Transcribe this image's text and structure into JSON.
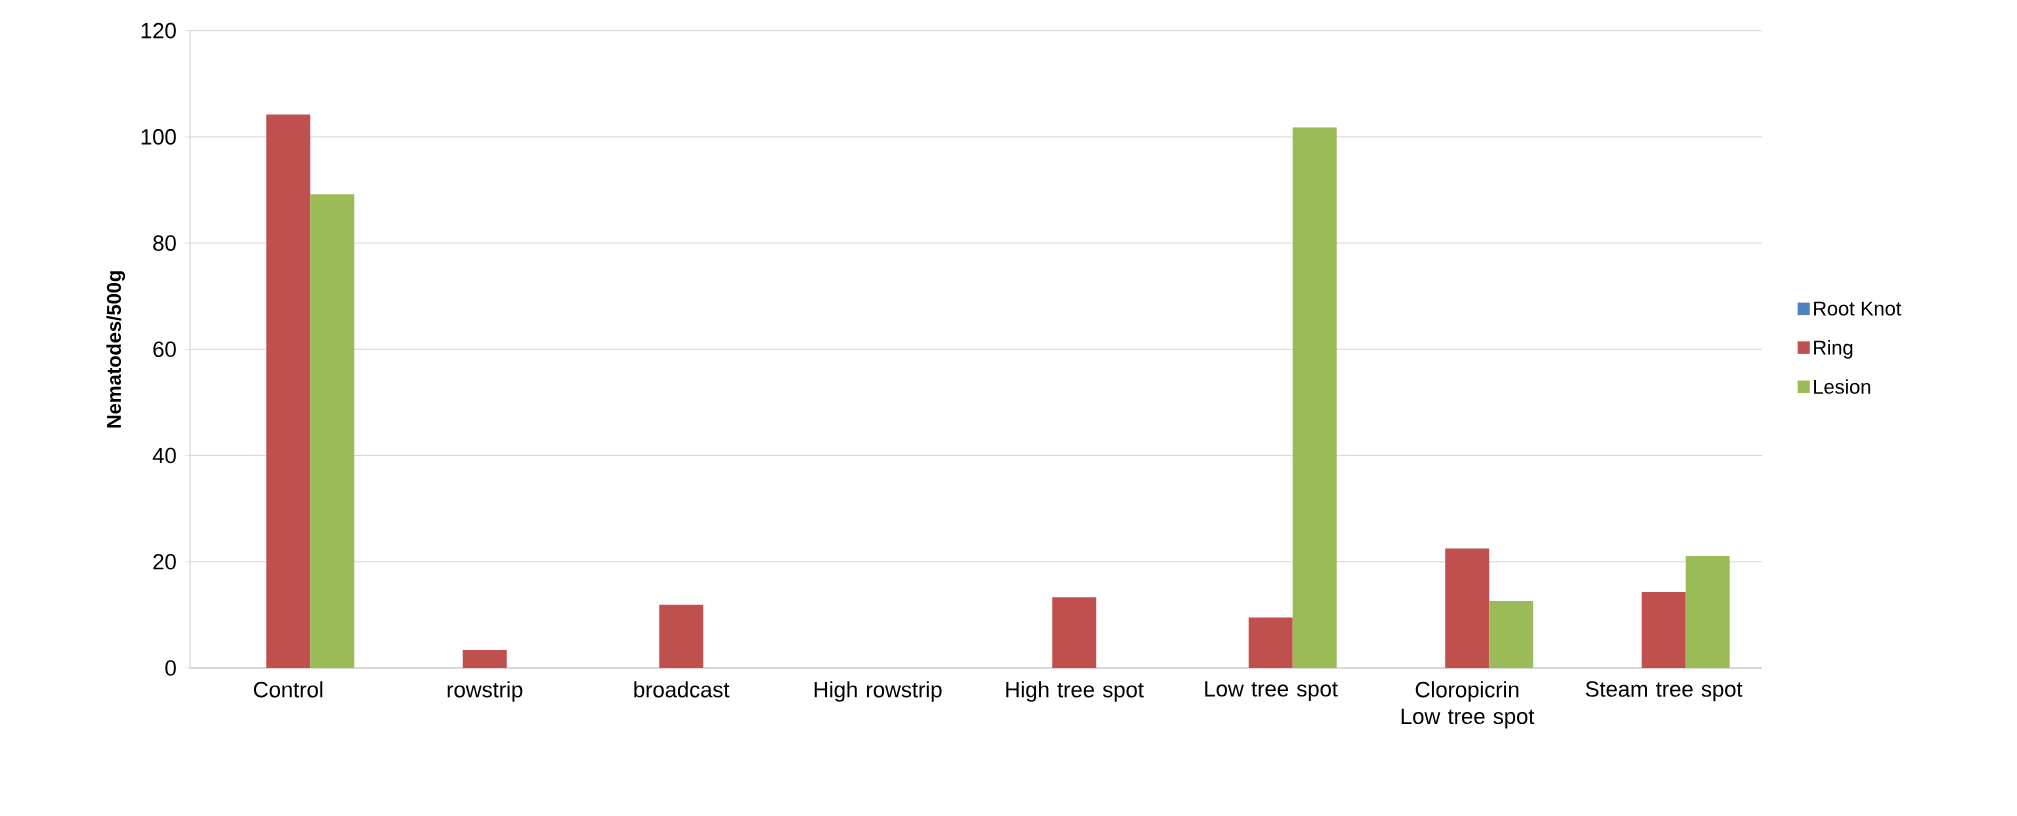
{
  "chart_data": {
    "type": "bar",
    "ylabel": "Nematodes/500g",
    "categories": [
      "Control",
      "rowstrip",
      "broadcast",
      "High rowstrip",
      "High tree spot",
      "Low tree spot",
      "Cloropicrin Low tree spot",
      "Steam tree spot"
    ],
    "series": [
      {
        "name": "Root Knot",
        "color": "#4f81bd",
        "values": [
          0,
          0,
          0,
          0,
          0,
          0,
          0,
          0
        ]
      },
      {
        "name": "Ring",
        "color": "#c0504d",
        "values": [
          104.2,
          3.4,
          11.9,
          0,
          13.3,
          9.5,
          22.5,
          14.3
        ]
      },
      {
        "name": "Lesion",
        "color": "#9bbb59",
        "values": [
          89.2,
          0,
          0,
          0,
          0,
          101.8,
          12.6,
          21.1
        ]
      }
    ],
    "ylim": [
      0,
      120
    ],
    "yticks": [
      0,
      20,
      40,
      60,
      80,
      100,
      120
    ],
    "grid": "y",
    "legend": "right"
  }
}
